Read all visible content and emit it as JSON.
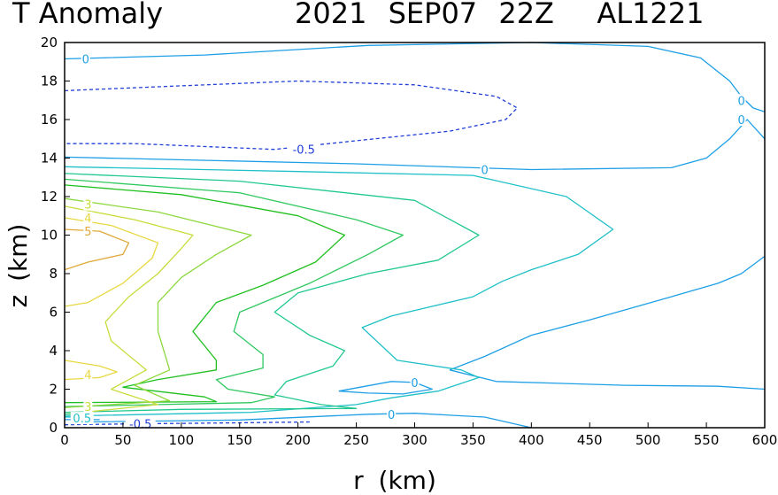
{
  "chart_data": {
    "type": "contour",
    "title_left": "T Anomaly",
    "title_right": "2021 SEP07 22Z  AL1221",
    "xlabel": "r (km)",
    "ylabel": "z (km)",
    "xlim": [
      0,
      600
    ],
    "ylim": [
      0,
      20
    ],
    "xticks": [
      0,
      50,
      100,
      150,
      200,
      250,
      300,
      350,
      400,
      450,
      500,
      550,
      600
    ],
    "yticks": [
      0,
      2,
      4,
      6,
      8,
      10,
      12,
      14,
      16,
      18,
      20
    ],
    "contours": [
      {
        "level": "-0.5",
        "color": "#2040d8",
        "dashed": true,
        "points": [
          [
            0,
            17.5
          ],
          [
            80,
            17.7
          ],
          [
            200,
            18.0
          ],
          [
            300,
            17.8
          ],
          [
            370,
            17.2
          ],
          [
            388,
            16.6
          ],
          [
            378,
            16.0
          ],
          [
            330,
            15.4
          ],
          [
            250,
            14.9
          ],
          [
            180,
            14.45
          ],
          [
            60,
            14.75
          ],
          [
            0,
            14.75
          ]
        ]
      },
      {
        "level": "0",
        "color": "#1e9fe6",
        "dashed": false,
        "points": [
          [
            0,
            19.15
          ],
          [
            120,
            19.35
          ],
          [
            260,
            19.85
          ],
          [
            400,
            20.0
          ],
          [
            500,
            19.8
          ],
          [
            545,
            19.2
          ],
          [
            570,
            18.0
          ],
          [
            580,
            17.2
          ],
          [
            590,
            16.6
          ],
          [
            600,
            16.4
          ]
        ]
      },
      {
        "level": "0",
        "color": "#1e9fe6",
        "dashed": false,
        "points": [
          [
            0,
            14.05
          ],
          [
            250,
            13.7
          ],
          [
            400,
            13.4
          ],
          [
            520,
            13.5
          ],
          [
            550,
            14.0
          ],
          [
            570,
            15.0
          ],
          [
            585,
            16.0
          ],
          [
            600,
            15.0
          ]
        ]
      },
      {
        "level": "0",
        "color": "#1e9fe6",
        "dashed": false,
        "points": [
          [
            330,
            3.0
          ],
          [
            360,
            3.7
          ],
          [
            400,
            4.8
          ],
          [
            450,
            5.6
          ],
          [
            520,
            6.8
          ],
          [
            560,
            7.5
          ],
          [
            580,
            8.0
          ],
          [
            600,
            8.9
          ]
        ]
      },
      {
        "level": "0",
        "color": "#1e9fe6",
        "dashed": false,
        "points": [
          [
            330,
            3.0
          ],
          [
            370,
            2.4
          ],
          [
            480,
            2.2
          ],
          [
            560,
            2.15
          ],
          [
            600,
            2.0
          ]
        ]
      },
      {
        "level": "0",
        "color": "#1e9fe6",
        "dashed": false,
        "points": [
          [
            235,
            1.9
          ],
          [
            280,
            2.4
          ],
          [
            300,
            2.35
          ],
          [
            315,
            2.0
          ],
          [
            290,
            1.75
          ],
          [
            260,
            1.8
          ],
          [
            235,
            1.9
          ]
        ]
      },
      {
        "level": "0",
        "color": "#1e9fe6",
        "dashed": false,
        "points": [
          [
            20,
            0.3
          ],
          [
            150,
            0.4
          ],
          [
            260,
            0.7
          ],
          [
            300,
            0.75
          ],
          [
            360,
            0.55
          ],
          [
            400,
            0.0
          ]
        ]
      },
      {
        "level": "0.5",
        "color": "#20c0c8",
        "dashed": false,
        "points": [
          [
            0,
            13.55
          ],
          [
            200,
            13.3
          ],
          [
            350,
            13.1
          ],
          [
            430,
            12.0
          ],
          [
            470,
            10.3
          ],
          [
            440,
            9.0
          ],
          [
            400,
            8.2
          ],
          [
            375,
            7.6
          ],
          [
            350,
            6.8
          ],
          [
            280,
            5.8
          ],
          [
            255,
            5.2
          ],
          [
            285,
            3.5
          ],
          [
            340,
            3.0
          ],
          [
            355,
            2.6
          ],
          [
            320,
            1.9
          ],
          [
            280,
            1.55
          ],
          [
            250,
            1.2
          ],
          [
            160,
            0.8
          ],
          [
            0,
            0.6
          ]
        ]
      },
      {
        "level": "1",
        "color": "#20c890",
        "dashed": false,
        "points": [
          [
            0,
            13.2
          ],
          [
            150,
            12.8
          ],
          [
            300,
            11.8
          ],
          [
            355,
            10.0
          ],
          [
            320,
            8.7
          ],
          [
            260,
            8.0
          ],
          [
            200,
            7.0
          ],
          [
            180,
            6.0
          ],
          [
            210,
            4.8
          ],
          [
            240,
            4.0
          ],
          [
            230,
            3.2
          ],
          [
            190,
            2.4
          ],
          [
            180,
            1.7
          ],
          [
            220,
            1.2
          ],
          [
            250,
            1.0
          ],
          [
            100,
            0.95
          ],
          [
            0,
            0.8
          ]
        ]
      },
      {
        "level": "1.5",
        "color": "#30c860",
        "dashed": false,
        "points": [
          [
            0,
            12.9
          ],
          [
            150,
            12.2
          ],
          [
            250,
            10.8
          ],
          [
            290,
            10.0
          ],
          [
            260,
            9.0
          ],
          [
            210,
            7.5
          ],
          [
            150,
            6.0
          ],
          [
            145,
            5.0
          ],
          [
            170,
            3.8
          ],
          [
            170,
            3.1
          ],
          [
            130,
            2.5
          ],
          [
            140,
            2.0
          ],
          [
            180,
            1.6
          ],
          [
            160,
            1.3
          ],
          [
            80,
            1.2
          ],
          [
            0,
            1.1
          ]
        ]
      },
      {
        "level": "2",
        "color": "#20c020",
        "dashed": false,
        "points": [
          [
            0,
            12.6
          ],
          [
            100,
            12.1
          ],
          [
            200,
            11.0
          ],
          [
            240,
            10.0
          ],
          [
            215,
            8.6
          ],
          [
            170,
            7.4
          ],
          [
            130,
            6.5
          ],
          [
            110,
            5.0
          ],
          [
            130,
            3.5
          ],
          [
            130,
            3.0
          ],
          [
            80,
            2.5
          ],
          [
            50,
            2.1
          ],
          [
            120,
            1.6
          ],
          [
            130,
            1.35
          ],
          [
            0,
            1.3
          ]
        ]
      },
      {
        "level": "2.5",
        "color": "#8ed83e",
        "dashed": false,
        "points": [
          [
            0,
            11.9
          ],
          [
            80,
            11.2
          ],
          [
            160,
            10.0
          ],
          [
            130,
            9.0
          ],
          [
            100,
            7.8
          ],
          [
            80,
            6.5
          ],
          [
            80,
            5.0
          ],
          [
            85,
            4.0
          ],
          [
            90,
            3.0
          ],
          [
            60,
            2.2
          ],
          [
            90,
            1.4
          ],
          [
            40,
            1.2
          ],
          [
            0,
            1.05
          ]
        ]
      },
      {
        "level": "3",
        "color": "#c8dc3c",
        "dashed": false,
        "points": [
          [
            0,
            11.5
          ],
          [
            60,
            10.8
          ],
          [
            110,
            10.0
          ],
          [
            100,
            9.3
          ],
          [
            80,
            8.0
          ],
          [
            55,
            6.8
          ],
          [
            35,
            5.5
          ],
          [
            40,
            4.5
          ],
          [
            70,
            3.0
          ],
          [
            40,
            2.0
          ],
          [
            80,
            1.2
          ],
          [
            0,
            0.7
          ]
        ]
      },
      {
        "level": "4",
        "color": "#e8d840",
        "dashed": false,
        "points": [
          [
            0,
            10.9
          ],
          [
            40,
            10.5
          ],
          [
            80,
            9.6
          ],
          [
            75,
            8.8
          ],
          [
            50,
            7.5
          ],
          [
            20,
            6.5
          ],
          [
            0,
            6.3
          ]
        ]
      },
      {
        "level": "4",
        "color": "#e8d840",
        "dashed": false,
        "points": [
          [
            0,
            3.5
          ],
          [
            30,
            3.2
          ],
          [
            45,
            2.9
          ],
          [
            30,
            2.6
          ],
          [
            0,
            2.5
          ]
        ]
      },
      {
        "level": "5",
        "color": "#e0a838",
        "dashed": false,
        "points": [
          [
            0,
            10.3
          ],
          [
            30,
            10.2
          ],
          [
            55,
            9.6
          ],
          [
            50,
            9.0
          ],
          [
            20,
            8.6
          ],
          [
            0,
            8.2
          ]
        ]
      },
      {
        "level": "-0.5",
        "color": "#2040d8",
        "dashed": true,
        "points": [
          [
            0,
            0.15
          ],
          [
            60,
            0.2
          ],
          [
            140,
            0.25
          ],
          [
            210,
            0.3
          ]
        ]
      },
      {
        "level": "0",
        "color": "#1e9fe6",
        "dashed": false,
        "points": [
          [
            0,
            0.42
          ],
          [
            30,
            0.42
          ]
        ]
      },
      {
        "level": "0.5",
        "color": "#20c0c8",
        "dashed": false,
        "points": [
          [
            0,
            0.55
          ],
          [
            25,
            0.55
          ]
        ]
      },
      {
        "level": "1",
        "color": "#20c890",
        "dashed": false,
        "points": [
          [
            0,
            0.7
          ],
          [
            20,
            0.7
          ]
        ]
      }
    ],
    "contour_labels": [
      {
        "text": "0",
        "x": 18,
        "y": 19.15,
        "color": "#1e9fe6"
      },
      {
        "text": "0",
        "x": 580,
        "y": 17.0,
        "color": "#1e9fe6"
      },
      {
        "text": "0",
        "x": 580,
        "y": 16.0,
        "color": "#1e9fe6"
      },
      {
        "text": "-0.5",
        "x": 205,
        "y": 14.45,
        "color": "#2040d8"
      },
      {
        "text": "0",
        "x": 360,
        "y": 13.4,
        "color": "#1e9fe6"
      },
      {
        "text": "3",
        "x": 20,
        "y": 11.6,
        "color": "#c8dc3c"
      },
      {
        "text": "4",
        "x": 20,
        "y": 10.9,
        "color": "#e8d840"
      },
      {
        "text": "5",
        "x": 20,
        "y": 10.2,
        "color": "#e0a838"
      },
      {
        "text": "4",
        "x": 20,
        "y": 2.75,
        "color": "#e8d840"
      },
      {
        "text": "0",
        "x": 300,
        "y": 2.35,
        "color": "#1e9fe6"
      },
      {
        "text": "3",
        "x": 20,
        "y": 1.1,
        "color": "#c8dc3c"
      },
      {
        "text": "0",
        "x": 280,
        "y": 0.7,
        "color": "#1e9fe6"
      },
      {
        "text": "0.5",
        "x": 15,
        "y": 0.5,
        "color": "#20c0c8"
      },
      {
        "text": "-0.5",
        "x": 65,
        "y": 0.2,
        "color": "#2040d8"
      }
    ]
  }
}
